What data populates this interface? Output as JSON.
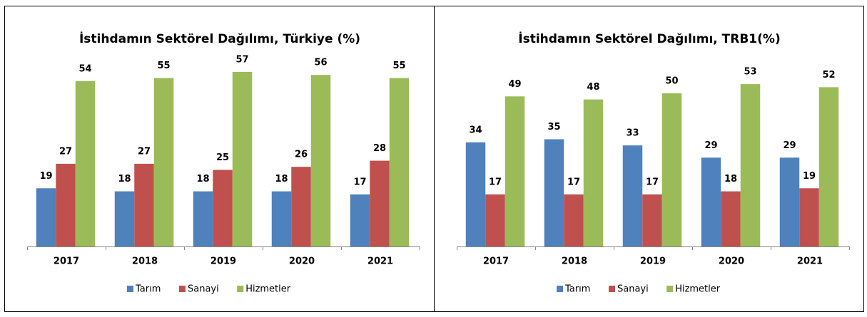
{
  "chart_data": [
    {
      "type": "bar",
      "title": "İstihdamın Sektörel Dağılımı, Türkiye (%)",
      "categories": [
        "2017",
        "2018",
        "2019",
        "2020",
        "2021"
      ],
      "series": [
        {
          "name": "Tarım",
          "color": "#4f81bd",
          "values": [
            19,
            18,
            18,
            18,
            17
          ]
        },
        {
          "name": "Sanayi",
          "color": "#c0504d",
          "values": [
            27,
            27,
            25,
            26,
            28
          ]
        },
        {
          "name": "Hizmetler",
          "color": "#9bbb59",
          "values": [
            54,
            55,
            57,
            56,
            55
          ]
        }
      ],
      "legend": "bottom"
    },
    {
      "type": "bar",
      "title": "İstihdamın Sektörel Dağılımı, TRB1(%)",
      "categories": [
        "2017",
        "2018",
        "2019",
        "2020",
        "2021"
      ],
      "series": [
        {
          "name": "Tarım",
          "color": "#4f81bd",
          "values": [
            34,
            35,
            33,
            29,
            29
          ]
        },
        {
          "name": "Sanayi",
          "color": "#c0504d",
          "values": [
            17,
            17,
            17,
            18,
            19
          ]
        },
        {
          "name": "Hizmetler",
          "color": "#9bbb59",
          "values": [
            49,
            48,
            50,
            53,
            52
          ]
        }
      ],
      "legend": "bottom"
    }
  ]
}
